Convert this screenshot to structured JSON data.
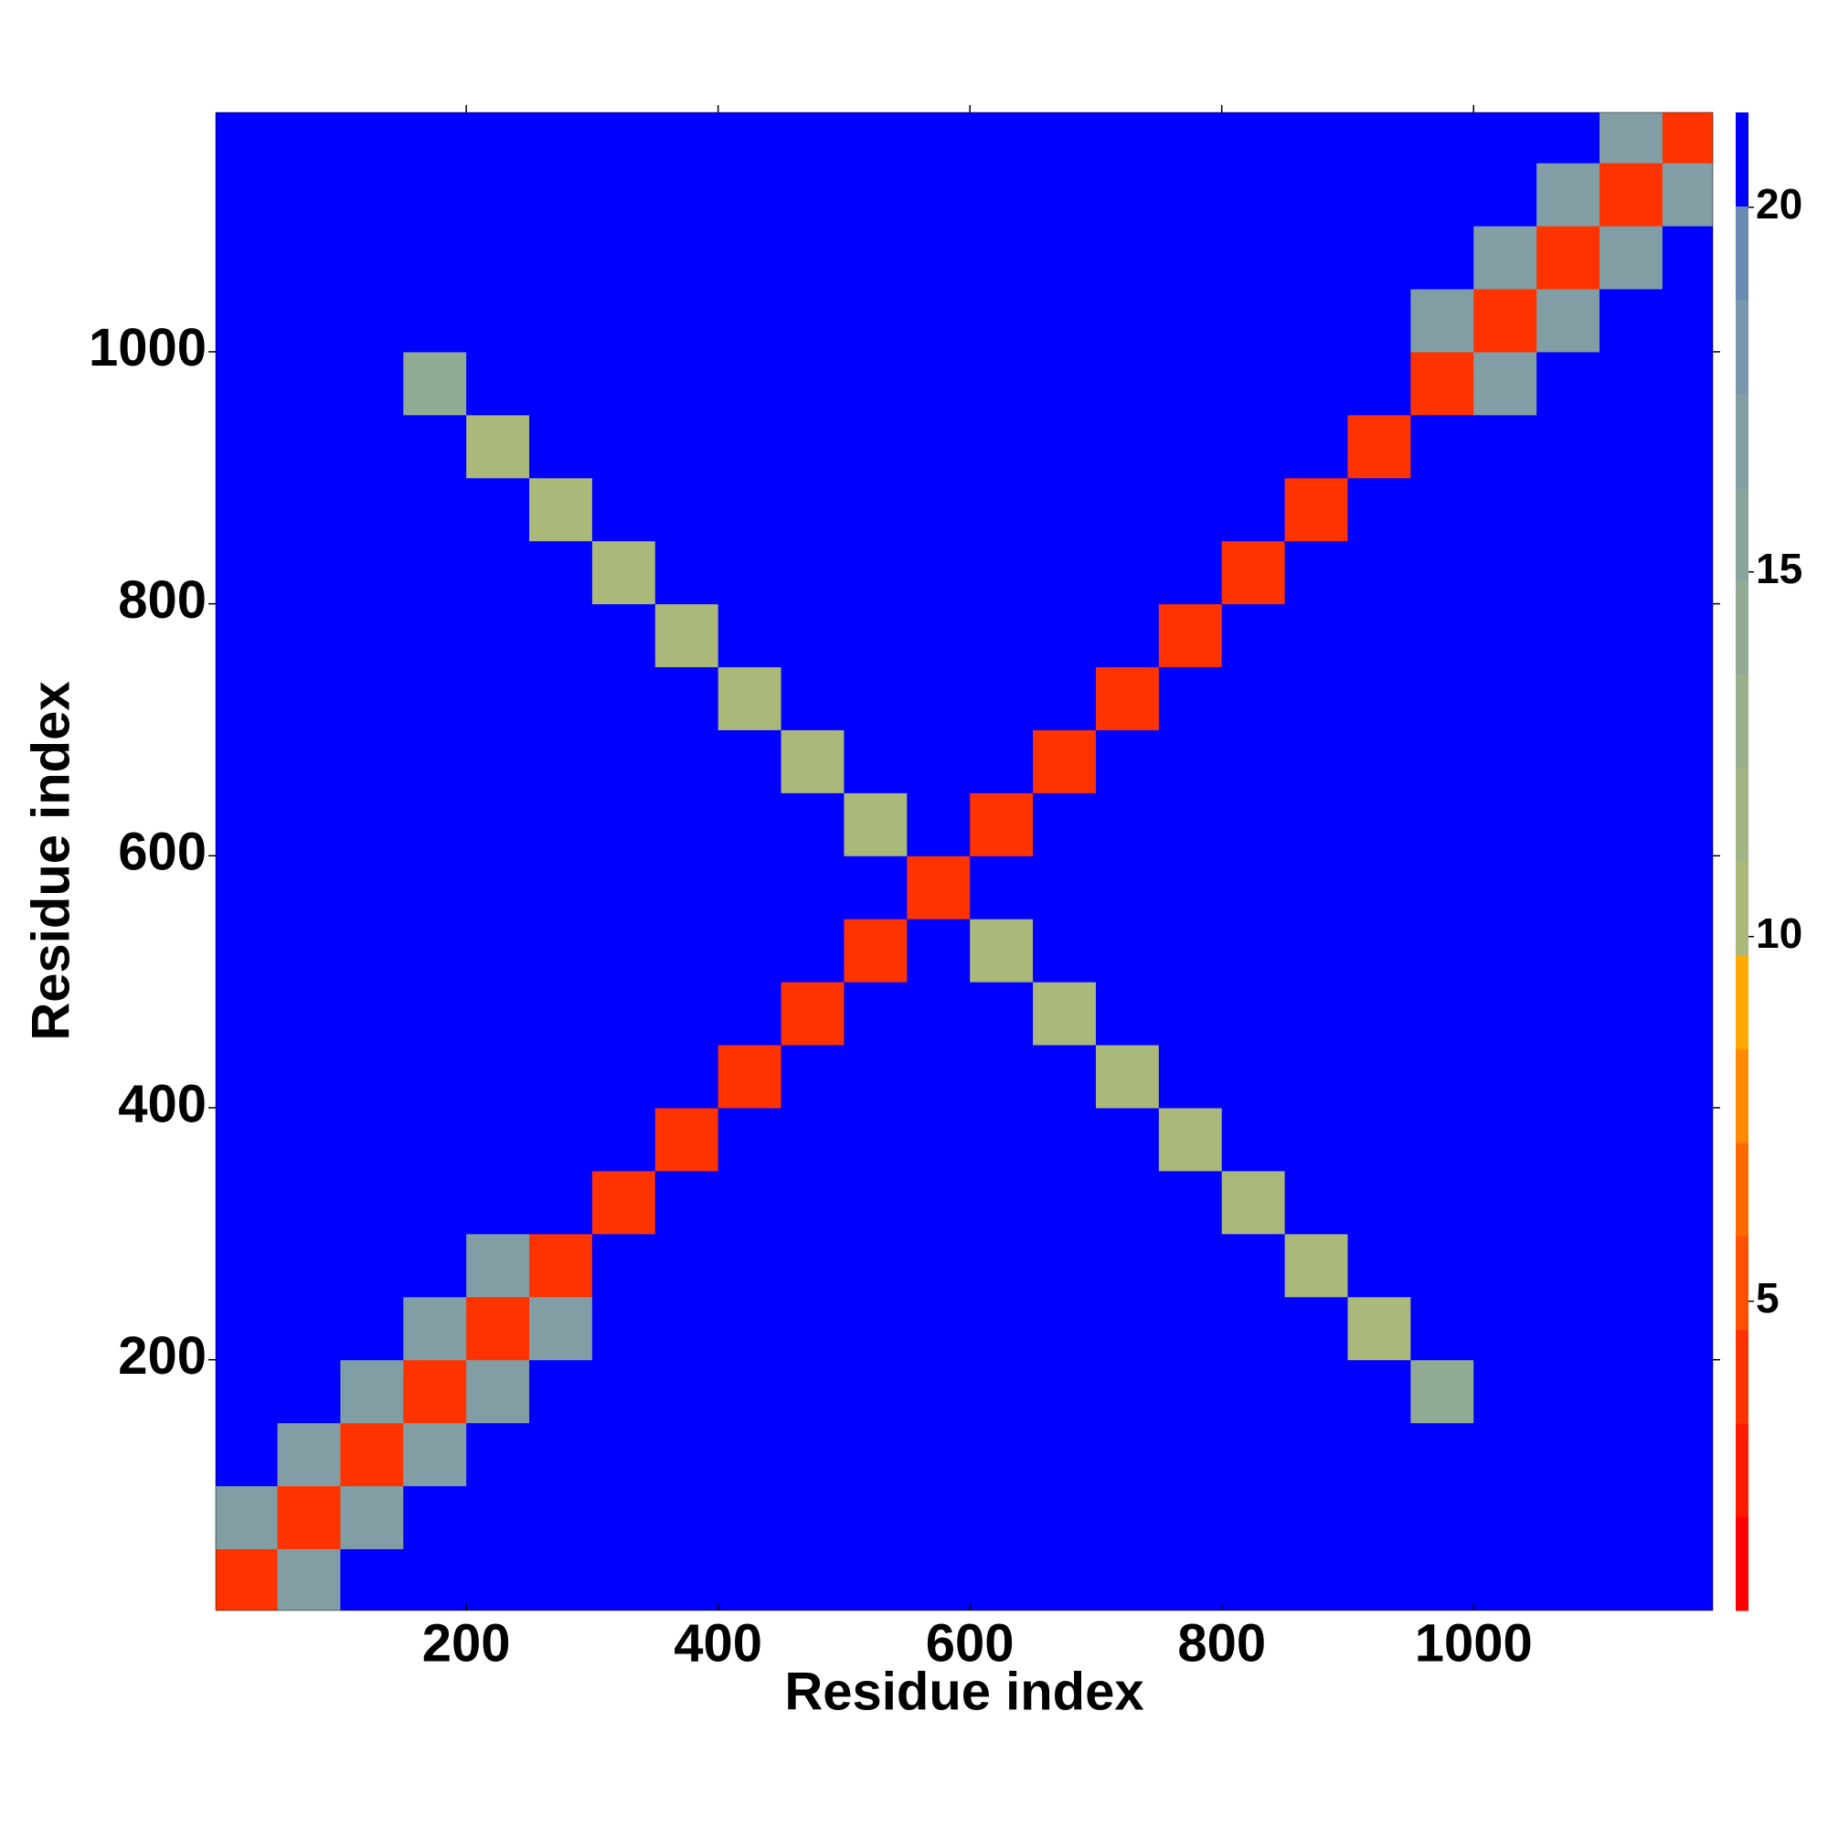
{
  "chart_data": {
    "type": "heatmap",
    "x_label": "Residue index",
    "y_label": "Residue index",
    "xlim": [
      1,
      1190
    ],
    "ylim": [
      1,
      1190
    ],
    "xticks": [
      200,
      400,
      600,
      800,
      1000
    ],
    "yticks": [
      200,
      400,
      600,
      800,
      1000
    ],
    "xbins": [
      0,
      50,
      100,
      150,
      200,
      250,
      300,
      350,
      400,
      450,
      500,
      550,
      600,
      650,
      700,
      750,
      800,
      850,
      900,
      950,
      1000,
      1050,
      1100,
      1150,
      1200
    ],
    "ybins": [
      0,
      50,
      100,
      150,
      200,
      250,
      300,
      350,
      400,
      450,
      500,
      550,
      600,
      650,
      700,
      750,
      800,
      850,
      900,
      950,
      1000,
      1050,
      1100,
      1150,
      1200
    ],
    "z": [
      [
        4,
        17,
        21,
        21,
        21,
        21,
        21,
        21,
        21,
        21,
        21,
        21,
        21,
        21,
        21,
        21,
        21,
        21,
        21,
        21,
        21,
        21,
        21,
        21
      ],
      [
        17,
        4,
        17,
        21,
        21,
        21,
        21,
        21,
        21,
        21,
        21,
        21,
        21,
        21,
        21,
        21,
        21,
        21,
        21,
        21,
        21,
        21,
        21,
        21
      ],
      [
        21,
        17,
        4,
        17,
        21,
        21,
        21,
        21,
        21,
        21,
        21,
        21,
        21,
        21,
        21,
        21,
        21,
        21,
        21,
        21,
        21,
        21,
        21,
        21
      ],
      [
        21,
        21,
        17,
        4,
        17,
        21,
        21,
        21,
        21,
        21,
        21,
        21,
        21,
        21,
        21,
        21,
        21,
        21,
        21,
        14,
        21,
        21,
        21,
        21
      ],
      [
        21,
        21,
        21,
        17,
        4,
        17,
        21,
        21,
        21,
        21,
        21,
        21,
        21,
        21,
        21,
        21,
        21,
        21,
        11,
        21,
        21,
        21,
        21,
        21
      ],
      [
        21,
        21,
        21,
        21,
        17,
        4,
        21,
        21,
        21,
        21,
        21,
        21,
        21,
        21,
        21,
        21,
        21,
        11,
        21,
        21,
        21,
        21,
        21,
        21
      ],
      [
        21,
        21,
        21,
        21,
        21,
        21,
        4,
        21,
        21,
        21,
        21,
        21,
        21,
        21,
        21,
        21,
        11,
        21,
        21,
        21,
        21,
        21,
        21,
        21
      ],
      [
        21,
        21,
        21,
        21,
        21,
        21,
        21,
        4,
        21,
        21,
        21,
        21,
        21,
        21,
        21,
        11,
        21,
        21,
        21,
        21,
        21,
        21,
        21,
        21
      ],
      [
        21,
        21,
        21,
        21,
        21,
        21,
        21,
        21,
        4,
        21,
        21,
        21,
        21,
        21,
        11,
        21,
        21,
        21,
        21,
        21,
        21,
        21,
        21,
        21
      ],
      [
        21,
        21,
        21,
        21,
        21,
        21,
        21,
        21,
        21,
        4,
        21,
        21,
        21,
        11,
        21,
        21,
        21,
        21,
        21,
        21,
        21,
        21,
        21,
        21
      ],
      [
        21,
        21,
        21,
        21,
        21,
        21,
        21,
        21,
        21,
        21,
        4,
        21,
        11,
        21,
        21,
        21,
        21,
        21,
        21,
        21,
        21,
        21,
        21,
        21
      ],
      [
        21,
        21,
        21,
        21,
        21,
        21,
        21,
        21,
        21,
        21,
        21,
        4,
        21,
        21,
        21,
        21,
        21,
        21,
        21,
        21,
        21,
        21,
        21,
        21
      ],
      [
        21,
        21,
        21,
        21,
        21,
        21,
        21,
        21,
        21,
        21,
        11,
        21,
        4,
        21,
        21,
        21,
        21,
        21,
        21,
        21,
        21,
        21,
        21,
        21
      ],
      [
        21,
        21,
        21,
        21,
        21,
        21,
        21,
        21,
        21,
        11,
        21,
        21,
        21,
        4,
        21,
        21,
        21,
        21,
        21,
        21,
        21,
        21,
        21,
        21
      ],
      [
        21,
        21,
        21,
        21,
        21,
        21,
        21,
        21,
        11,
        21,
        21,
        21,
        21,
        21,
        4,
        21,
        21,
        21,
        21,
        21,
        21,
        21,
        21,
        21
      ],
      [
        21,
        21,
        21,
        21,
        21,
        21,
        21,
        11,
        21,
        21,
        21,
        21,
        21,
        21,
        21,
        4,
        21,
        21,
        21,
        21,
        21,
        21,
        21,
        21
      ],
      [
        21,
        21,
        21,
        21,
        21,
        21,
        11,
        21,
        21,
        21,
        21,
        21,
        21,
        21,
        21,
        21,
        4,
        21,
        21,
        21,
        21,
        21,
        21,
        21
      ],
      [
        21,
        21,
        21,
        21,
        21,
        11,
        21,
        21,
        21,
        21,
        21,
        21,
        21,
        21,
        21,
        21,
        21,
        4,
        21,
        21,
        21,
        21,
        21,
        21
      ],
      [
        21,
        21,
        21,
        21,
        11,
        21,
        21,
        21,
        21,
        21,
        21,
        21,
        21,
        21,
        21,
        21,
        21,
        21,
        4,
        21,
        21,
        21,
        21,
        21
      ],
      [
        21,
        21,
        21,
        14,
        21,
        21,
        21,
        21,
        21,
        21,
        21,
        21,
        21,
        21,
        21,
        21,
        21,
        21,
        21,
        4,
        17,
        21,
        21,
        21
      ],
      [
        21,
        21,
        21,
        21,
        21,
        21,
        21,
        21,
        21,
        21,
        21,
        21,
        21,
        21,
        21,
        21,
        21,
        21,
        21,
        17,
        4,
        17,
        21,
        21
      ],
      [
        21,
        21,
        21,
        21,
        21,
        21,
        21,
        21,
        21,
        21,
        21,
        21,
        21,
        21,
        21,
        21,
        21,
        21,
        21,
        21,
        17,
        4,
        17,
        21
      ],
      [
        21,
        21,
        21,
        21,
        21,
        21,
        21,
        21,
        21,
        21,
        21,
        21,
        21,
        21,
        21,
        21,
        21,
        21,
        21,
        21,
        21,
        17,
        4,
        17
      ],
      [
        21,
        21,
        21,
        21,
        21,
        21,
        21,
        21,
        21,
        21,
        21,
        21,
        21,
        21,
        21,
        21,
        21,
        21,
        21,
        21,
        21,
        21,
        17,
        4
      ]
    ],
    "colorbar": {
      "zlim": [
        0.76,
        21.3
      ],
      "ticks": [
        5,
        10,
        15,
        20
      ],
      "colors": [
        "#ff0000",
        "#ff1a00",
        "#ff3300",
        "#ff5000",
        "#ff6a00",
        "#ff8a00",
        "#ffaa00",
        "#aab87a",
        "#a0b484",
        "#98b08c",
        "#90aa94",
        "#88a49c",
        "#809ea4",
        "#7896ac",
        "#6a8ab4",
        "#0000ff"
      ]
    }
  }
}
